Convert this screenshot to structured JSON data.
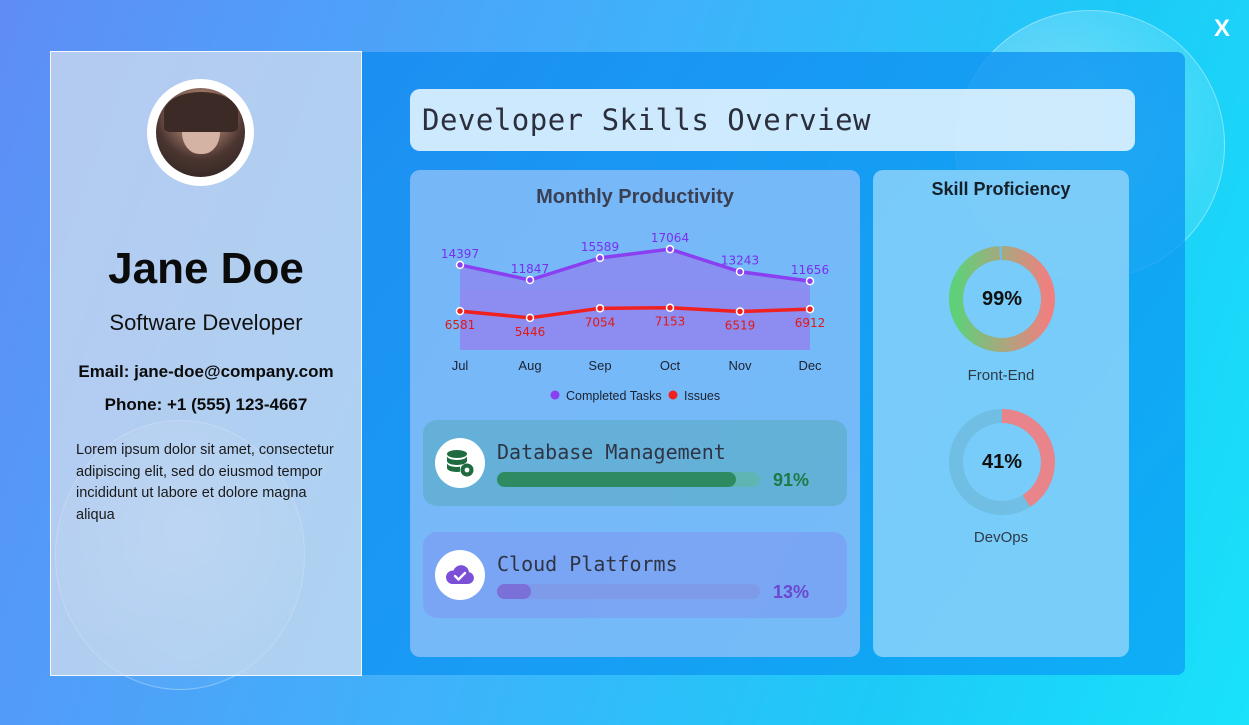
{
  "close_label": "X",
  "profile": {
    "name": "Jane Doe",
    "role": "Software Developer",
    "email": "Email: jane-doe@company.com",
    "phone": "Phone: +1 (555) 123-4667",
    "bio": "Lorem ipsum dolor sit amet, consectetur adipiscing elit, sed do eiusmod tempor incididunt ut labore et dolore magna aliqua"
  },
  "dashboard_title": "Developer Skills Overview",
  "chart_data": {
    "type": "area",
    "title": "Monthly Productivity",
    "categories": [
      "Jul",
      "Aug",
      "Sep",
      "Oct",
      "Nov",
      "Dec"
    ],
    "series": [
      {
        "name": "Completed Tasks",
        "values": [
          14397,
          11847,
          15589,
          17064,
          13243,
          11656
        ],
        "color": "#8a3ff0",
        "fill": "#8f84f0"
      },
      {
        "name": "Issues",
        "values": [
          6581,
          5446,
          7054,
          7153,
          6519,
          6912
        ],
        "color": "#f02020"
      }
    ],
    "ylim": [
      0,
      22000
    ],
    "legend": "bottom"
  },
  "skills": [
    {
      "label": "Database Management",
      "percent": 91,
      "percent_label": "91%",
      "icon": "database-gear-icon",
      "color": "#2e8b61",
      "track": "#5fb4b4",
      "text_color": "#1e7a45"
    },
    {
      "label": "Cloud Platforms",
      "percent": 13,
      "percent_label": "13%",
      "icon": "cloud-check-icon",
      "color": "#7b6fd8",
      "track": "#7d9be8",
      "text_color": "#6a48d0"
    }
  ],
  "proficiency": {
    "title": "Skill Proficiency",
    "items": [
      {
        "label": "Front-End",
        "percent": 99,
        "percent_label": "99%"
      },
      {
        "label": "DevOps",
        "percent": 41,
        "percent_label": "41%"
      }
    ]
  }
}
